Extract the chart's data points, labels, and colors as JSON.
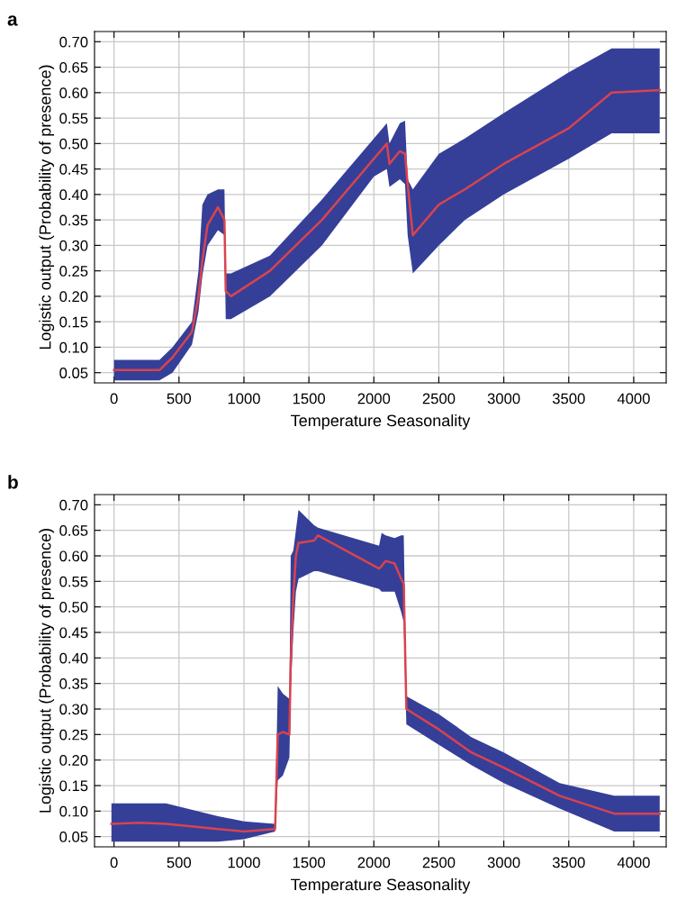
{
  "chart_data": [
    {
      "type": "line",
      "xlabel": "Temperature Seasonality",
      "ylabel": "Logistic output (Probability of presence)",
      "annotations": [
        "a"
      ],
      "xlim": [
        -150,
        4250
      ],
      "ylim": [
        0.03,
        0.72
      ],
      "xticks": [
        0,
        500,
        1000,
        1500,
        2000,
        2500,
        3000,
        3500,
        4000
      ],
      "yticks": [
        {
          "value": 0.05,
          "label": "0.05"
        },
        {
          "value": 0.1,
          "label": "0.10"
        },
        {
          "value": 0.15,
          "label": "0.15"
        },
        {
          "value": 0.2,
          "label": "0.20"
        },
        {
          "value": 0.25,
          "label": "0.25"
        },
        {
          "value": 0.3,
          "label": "0.30"
        },
        {
          "value": 0.35,
          "label": "0.35"
        },
        {
          "value": 0.4,
          "label": "0.40"
        },
        {
          "value": 0.45,
          "label": "0.45"
        },
        {
          "value": 0.5,
          "label": "0.50"
        },
        {
          "value": 0.55,
          "label": "0.55"
        },
        {
          "value": 0.6,
          "label": "0.60"
        },
        {
          "value": 0.65,
          "label": "0.65"
        },
        {
          "value": 0.7,
          "label": "0.70"
        }
      ],
      "grid": true,
      "marker": "none",
      "line_style": "solid",
      "series": [
        {
          "color": "#d9434e",
          "x": [
            0,
            350,
            450,
            600,
            650,
            680,
            720,
            800,
            850,
            860,
            900,
            1200,
            1600,
            2000,
            2100,
            2120,
            2200,
            2240,
            2260,
            2300,
            2500,
            2700,
            3000,
            3500,
            3830,
            4200
          ],
          "values": [
            0.055,
            0.055,
            0.08,
            0.13,
            0.2,
            0.27,
            0.34,
            0.375,
            0.35,
            0.21,
            0.2,
            0.25,
            0.35,
            0.47,
            0.5,
            0.46,
            0.485,
            0.48,
            0.42,
            0.32,
            0.38,
            0.41,
            0.46,
            0.53,
            0.6,
            0.605
          ],
          "lower": [
            0.035,
            0.035,
            0.05,
            0.105,
            0.17,
            0.24,
            0.3,
            0.33,
            0.32,
            0.155,
            0.155,
            0.2,
            0.3,
            0.435,
            0.45,
            0.415,
            0.43,
            0.42,
            0.32,
            0.245,
            0.3,
            0.35,
            0.4,
            0.47,
            0.52,
            0.52
          ],
          "upper": [
            0.075,
            0.075,
            0.1,
            0.15,
            0.25,
            0.38,
            0.4,
            0.41,
            0.41,
            0.245,
            0.245,
            0.28,
            0.39,
            0.51,
            0.54,
            0.5,
            0.54,
            0.545,
            0.43,
            0.41,
            0.48,
            0.51,
            0.56,
            0.64,
            0.687,
            0.687
          ]
        }
      ]
    },
    {
      "type": "line",
      "xlabel": "Temperature Seasonality",
      "ylabel": "Logistic output (Probability of presence)",
      "annotations": [
        "b"
      ],
      "xlim": [
        -150,
        4250
      ],
      "ylim": [
        0.03,
        0.72
      ],
      "xticks": [
        0,
        500,
        1000,
        1500,
        2000,
        2500,
        3000,
        3500,
        4000
      ],
      "yticks": [
        {
          "value": 0.05,
          "label": "0.05"
        },
        {
          "value": 0.1,
          "label": "0.10"
        },
        {
          "value": 0.15,
          "label": "0.15"
        },
        {
          "value": 0.2,
          "label": "0.20"
        },
        {
          "value": 0.25,
          "label": "0.25"
        },
        {
          "value": 0.3,
          "label": "0.30"
        },
        {
          "value": 0.35,
          "label": "0.35"
        },
        {
          "value": 0.4,
          "label": "0.40"
        },
        {
          "value": 0.45,
          "label": "0.45"
        },
        {
          "value": 0.5,
          "label": "0.50"
        },
        {
          "value": 0.55,
          "label": "0.55"
        },
        {
          "value": 0.6,
          "label": "0.60"
        },
        {
          "value": 0.65,
          "label": "0.65"
        },
        {
          "value": 0.7,
          "label": "0.70"
        }
      ],
      "grid": true,
      "marker": "none",
      "line_style": "solid",
      "series": [
        {
          "color": "#d9434e",
          "x": [
            -20,
            200,
            400,
            800,
            1000,
            1240,
            1260,
            1300,
            1350,
            1360,
            1380,
            1400,
            1420,
            1540,
            1570,
            2040,
            2060,
            2090,
            2160,
            2210,
            2230,
            2250,
            2500,
            2750,
            3000,
            3430,
            3850,
            4200
          ],
          "values": [
            0.075,
            0.077,
            0.075,
            0.065,
            0.06,
            0.065,
            0.25,
            0.255,
            0.25,
            0.39,
            0.52,
            0.6,
            0.625,
            0.63,
            0.64,
            0.575,
            0.58,
            0.59,
            0.585,
            0.555,
            0.545,
            0.3,
            0.26,
            0.215,
            0.185,
            0.13,
            0.095,
            0.095
          ],
          "lower": [
            0.04,
            0.04,
            0.04,
            0.04,
            0.045,
            0.06,
            0.16,
            0.17,
            0.205,
            0.335,
            0.45,
            0.53,
            0.555,
            0.57,
            0.57,
            0.535,
            0.53,
            0.53,
            0.53,
            0.49,
            0.47,
            0.27,
            0.23,
            0.19,
            0.155,
            0.105,
            0.06,
            0.06
          ],
          "upper": [
            0.115,
            0.115,
            0.115,
            0.09,
            0.08,
            0.075,
            0.345,
            0.33,
            0.32,
            0.6,
            0.61,
            0.65,
            0.69,
            0.66,
            0.655,
            0.62,
            0.645,
            0.64,
            0.635,
            0.64,
            0.64,
            0.325,
            0.29,
            0.245,
            0.215,
            0.155,
            0.13,
            0.13
          ]
        }
      ]
    }
  ]
}
